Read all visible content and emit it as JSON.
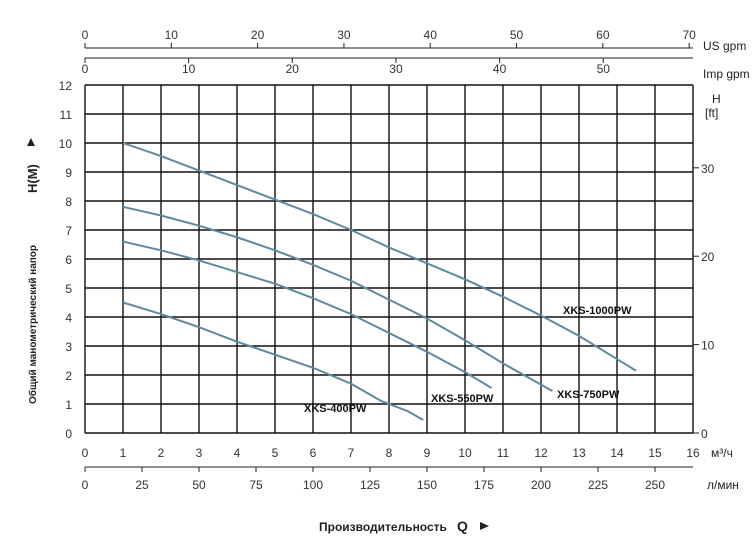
{
  "chart_data": {
    "type": "line",
    "x_label": "Производительность",
    "x_symbol": "Q",
    "x_units": {
      "m3h": "м³/ч",
      "lmin": "л/мин",
      "us_gpm": "US gpm",
      "imp_gpm": "Imp gpm"
    },
    "y_label": "Общий манометрический напор",
    "y_symbol": "H(M)",
    "y_right_label": [
      "H",
      "[ft]"
    ],
    "xlim": [
      0,
      16
    ],
    "ylim": [
      0,
      12
    ],
    "x_ticks_m3h": [
      "0",
      "1",
      "2",
      "3",
      "4",
      "5",
      "6",
      "7",
      "8",
      "9",
      "10",
      "11",
      "12",
      "13",
      "14",
      "15",
      "16"
    ],
    "x_ticks_lmin": [
      "0",
      "25",
      "50",
      "75",
      "100",
      "125",
      "150",
      "175",
      "200",
      "225",
      "250"
    ],
    "x_ticks_us_gpm": [
      "0",
      "10",
      "20",
      "30",
      "40",
      "50",
      "60",
      "70"
    ],
    "x_ticks_imp_gpm": [
      "0",
      "10",
      "20",
      "30",
      "40",
      "50"
    ],
    "y_ticks": [
      "0",
      "1",
      "2",
      "3",
      "4",
      "5",
      "6",
      "7",
      "8",
      "9",
      "10",
      "11",
      "12"
    ],
    "y_ticks_ft": [
      "0",
      "10",
      "20",
      "30"
    ],
    "grid": true,
    "series": [
      {
        "name": "XKS-400PW",
        "x": [
          1,
          2,
          3,
          4,
          5,
          6,
          7,
          7.8,
          8.5,
          8.9
        ],
        "y": [
          4.5,
          4.1,
          3.65,
          3.15,
          2.7,
          2.25,
          1.7,
          1.1,
          0.75,
          0.45
        ]
      },
      {
        "name": "XKS-550PW",
        "x": [
          1,
          2,
          3,
          4,
          5,
          6,
          7,
          8,
          9,
          10,
          10.7
        ],
        "y": [
          6.6,
          6.3,
          5.95,
          5.55,
          5.15,
          4.65,
          4.1,
          3.45,
          2.8,
          2.1,
          1.55
        ]
      },
      {
        "name": "XKS-750PW",
        "x": [
          1,
          2,
          3,
          4,
          5,
          6,
          7,
          8,
          9,
          10,
          11,
          12.3
        ],
        "y": [
          7.8,
          7.5,
          7.15,
          6.75,
          6.3,
          5.8,
          5.25,
          4.6,
          3.95,
          3.2,
          2.4,
          1.45
        ]
      },
      {
        "name": "XKS-1000PW",
        "x": [
          1,
          2,
          3,
          4,
          5,
          6,
          7,
          8,
          9,
          10,
          11,
          12,
          13,
          14,
          14.5
        ],
        "y": [
          10.0,
          9.55,
          9.05,
          8.55,
          8.05,
          7.55,
          7.0,
          6.4,
          5.85,
          5.3,
          4.7,
          4.05,
          3.35,
          2.55,
          2.15
        ]
      }
    ]
  }
}
